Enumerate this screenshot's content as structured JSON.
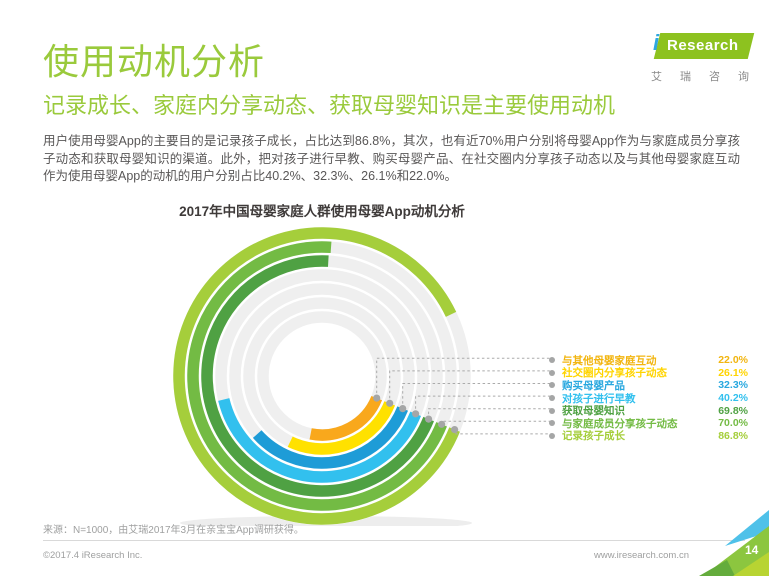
{
  "header": {
    "title": "使用动机分析",
    "subtitle": "记录成长、家庭内分享动态、获取母婴知识是主要使用动机"
  },
  "logo": {
    "i": "i",
    "research": "Research",
    "cn_chars": [
      "艾",
      "瑞",
      "咨",
      "询"
    ]
  },
  "intro": "用户使用母婴App的主要目的是记录孩子成长，占比达到86.8%，其次，也有近70%用户分别将母婴App作为与家庭成员分享孩子动态和获取母婴知识的渠道。此外，把对孩子进行早教、购买母婴产品、在社交圈内分享孩子动态以及与其他母婴家庭互动作为使用母婴App的动机的用户分别占比40.2%、32.3%、26.1%和22.0%。",
  "chart_data": {
    "type": "bar",
    "variant": "radial-concentric-rings",
    "title": "2017年中国母婴家庭人群使用母婴App动机分析",
    "unit": "%",
    "start_angle_deg": 112,
    "sweep_direction": "clockwise",
    "track_color": "#EFEFEF",
    "categories": [
      "记录孩子成长",
      "与家庭成员分享孩子动态",
      "获取母婴知识",
      "对孩子进行早教",
      "购买母婴产品",
      "社交圈内分享孩子动态",
      "与其他母婴家庭互动"
    ],
    "values": [
      86.8,
      70.0,
      69.8,
      40.2,
      32.3,
      26.1,
      22.0
    ],
    "rings": [
      {
        "label": "记录孩子成长",
        "value": 86.8,
        "color": "#A5CE3B"
      },
      {
        "label": "与家庭成员分享孩子动态",
        "value": 70.0,
        "color": "#73BB44"
      },
      {
        "label": "获取母婴知识",
        "value": 69.8,
        "color": "#4FA143"
      },
      {
        "label": "对孩子进行早教",
        "value": 40.2,
        "color": "#32C0EE"
      },
      {
        "label": "购买母婴产品",
        "value": 32.3,
        "color": "#1E9CD7"
      },
      {
        "label": "社交圈内分享孩子动态",
        "value": 26.1,
        "color": "#FFE100"
      },
      {
        "label": "与其他母婴家庭互动",
        "value": 22.0,
        "color": "#F9A81C"
      }
    ]
  },
  "legend": {
    "items": [
      {
        "label": "与其他母婴家庭互动",
        "value_text": "22.0%",
        "color": "#F2B50F"
      },
      {
        "label": "社交圈内分享孩子动态",
        "value_text": "26.1%",
        "color": "#FFD400"
      },
      {
        "label": "购买母婴产品",
        "value_text": "32.3%",
        "color": "#29A8DF"
      },
      {
        "label": "对孩子进行早教",
        "value_text": "40.2%",
        "color": "#32C0EE"
      },
      {
        "label": "获取母婴知识",
        "value_text": "69.8%",
        "color": "#4FA143"
      },
      {
        "label": "与家庭成员分享孩子动态",
        "value_text": "70.0%",
        "color": "#73BB44"
      },
      {
        "label": "记录孩子成长",
        "value_text": "86.8%",
        "color": "#A5CE3B"
      }
    ]
  },
  "source": "来源：N=1000，由艾瑞2017年3月在亲宝宝App调研获得。",
  "footer": {
    "copyright": "©2017.4 iResearch Inc.",
    "website": "www.iresearch.com.cn",
    "page_number": "14"
  },
  "colors": {
    "accent_green": "#9ACA3C",
    "logo_green": "#8DC21F",
    "logo_blue": "#2EA7E0",
    "body_text": "#595757",
    "muted_text": "#9FA0A0",
    "callout_gray": "#A5A6A6",
    "corner_blue": "#4FC1E9",
    "corner_green": "#8CC63F",
    "corner_dark_green": "#64AC3C",
    "corner_light_green": "#BCD531"
  }
}
